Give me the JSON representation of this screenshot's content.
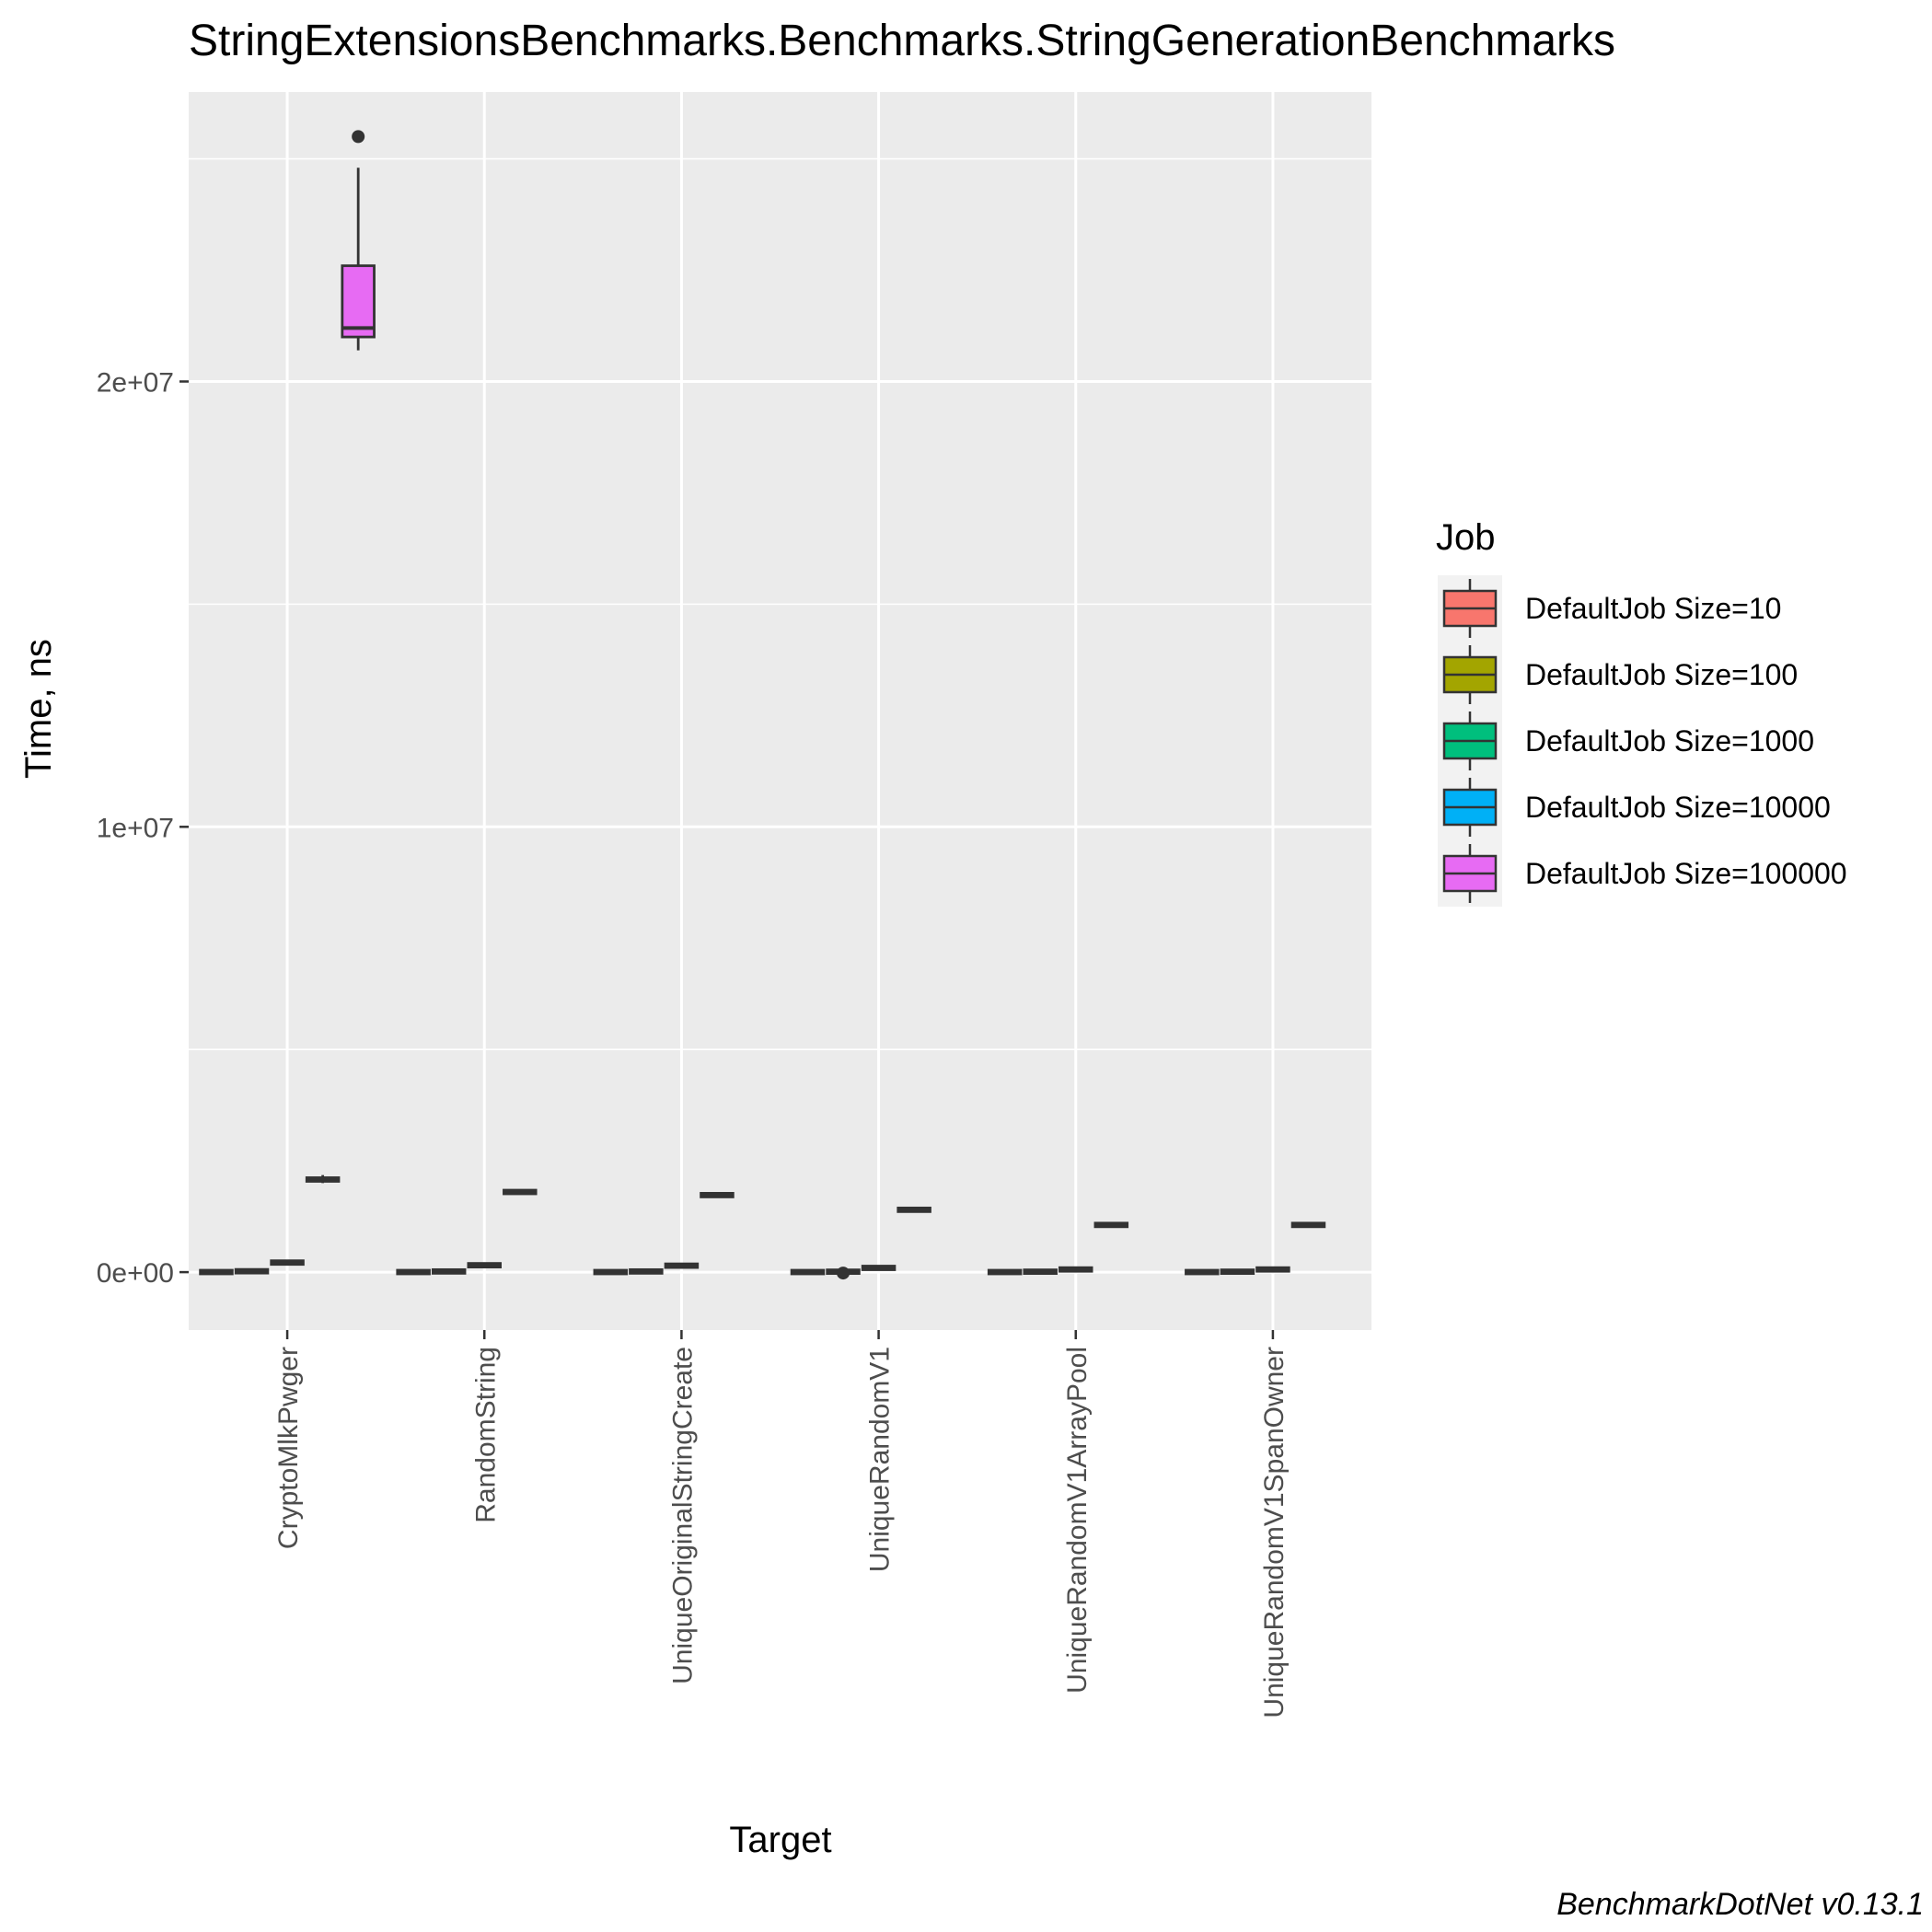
{
  "chart_data": {
    "type": "box",
    "title": "StringExtensionsBenchmarks.Benchmarks.StringGenerationBenchmarks",
    "xlabel": "Target",
    "ylabel": "Time, ns",
    "caption": "BenchmarkDotNet v0.13.1",
    "ylim": [
      -1300000,
      26500000
    ],
    "yticks": [
      0,
      10000000,
      20000000
    ],
    "ytick_labels": [
      "0e+00",
      "1e+07",
      "2e+07"
    ],
    "grid": true,
    "legend": {
      "title": "Job",
      "position": "right",
      "entries": [
        {
          "label": "DefaultJob Size=10",
          "color": "#F8766D"
        },
        {
          "label": "DefaultJob Size=100",
          "color": "#A3A500"
        },
        {
          "label": "DefaultJob Size=1000",
          "color": "#00BF7D"
        },
        {
          "label": "DefaultJob Size=10000",
          "color": "#00B0F6"
        },
        {
          "label": "DefaultJob Size=100000",
          "color": "#E76BF3"
        }
      ]
    },
    "categories": [
      "CryptoMlkPwger",
      "RandomString",
      "UniqueOriginalStringCreate",
      "UniqueRandomV1",
      "UniqueRandomV1ArrayPool",
      "UniqueRandomV1SpanOwner"
    ],
    "series": [
      {
        "name": "DefaultJob Size=10",
        "boxes": [
          {
            "min": 1000,
            "q1": 1500,
            "median": 2000,
            "q3": 2500,
            "max": 3000
          },
          {
            "min": 1000,
            "q1": 1500,
            "median": 2000,
            "q3": 2500,
            "max": 3000
          },
          {
            "min": 1000,
            "q1": 1500,
            "median": 2000,
            "q3": 2500,
            "max": 3000
          },
          {
            "min": 1000,
            "q1": 1500,
            "median": 2000,
            "q3": 2500,
            "max": 3000
          },
          {
            "min": 1000,
            "q1": 1500,
            "median": 2000,
            "q3": 2500,
            "max": 3000
          },
          {
            "min": 1000,
            "q1": 1500,
            "median": 2000,
            "q3": 2500,
            "max": 3000
          }
        ]
      },
      {
        "name": "DefaultJob Size=100",
        "boxes": [
          {
            "min": 15000,
            "q1": 18000,
            "median": 20000,
            "q3": 22000,
            "max": 25000
          },
          {
            "min": 12000,
            "q1": 14000,
            "median": 15000,
            "q3": 16000,
            "max": 18000
          },
          {
            "min": 12000,
            "q1": 14000,
            "median": 15000,
            "q3": 16000,
            "max": 18000
          },
          {
            "min": 8000,
            "q1": 9000,
            "median": 10000,
            "q3": 11000,
            "max": 12000,
            "outliers": [
              -20000
            ]
          },
          {
            "min": 8000,
            "q1": 9000,
            "median": 10000,
            "q3": 11000,
            "max": 12000
          },
          {
            "min": 8000,
            "q1": 9000,
            "median": 10000,
            "q3": 11000,
            "max": 12000
          }
        ]
      },
      {
        "name": "DefaultJob Size=1000",
        "boxes": [
          {
            "min": 180000,
            "q1": 200000,
            "median": 210000,
            "q3": 230000,
            "max": 260000
          },
          {
            "min": 140000,
            "q1": 150000,
            "median": 155000,
            "q3": 160000,
            "max": 170000
          },
          {
            "min": 130000,
            "q1": 140000,
            "median": 145000,
            "q3": 150000,
            "max": 160000
          },
          {
            "min": 80000,
            "q1": 90000,
            "median": 95000,
            "q3": 100000,
            "max": 110000
          },
          {
            "min": 50000,
            "q1": 55000,
            "median": 60000,
            "q3": 65000,
            "max": 70000
          },
          {
            "min": 50000,
            "q1": 55000,
            "median": 60000,
            "q3": 65000,
            "max": 70000
          }
        ]
      },
      {
        "name": "DefaultJob Size=10000",
        "boxes": [
          {
            "min": 2000000,
            "q1": 2050000,
            "median": 2080000,
            "q3": 2110000,
            "max": 2180000
          },
          {
            "min": 1770000,
            "q1": 1790000,
            "median": 1800000,
            "q3": 1810000,
            "max": 1830000
          },
          {
            "min": 1700000,
            "q1": 1720000,
            "median": 1730000,
            "q3": 1740000,
            "max": 1760000
          },
          {
            "min": 1340000,
            "q1": 1380000,
            "median": 1400000,
            "q3": 1420000,
            "max": 1460000
          },
          {
            "min": 1040000,
            "q1": 1055000,
            "median": 1060000,
            "q3": 1065000,
            "max": 1080000
          },
          {
            "min": 1040000,
            "q1": 1055000,
            "median": 1060000,
            "q3": 1065000,
            "max": 1080000
          }
        ]
      },
      {
        "name": "DefaultJob Size=100000",
        "boxes": [
          {
            "min": 20700000,
            "q1": 21000000,
            "median": 21200000,
            "q3": 22600000,
            "max": 24800000,
            "outliers": [
              25500000
            ]
          },
          null,
          null,
          null,
          null,
          null
        ]
      }
    ]
  }
}
